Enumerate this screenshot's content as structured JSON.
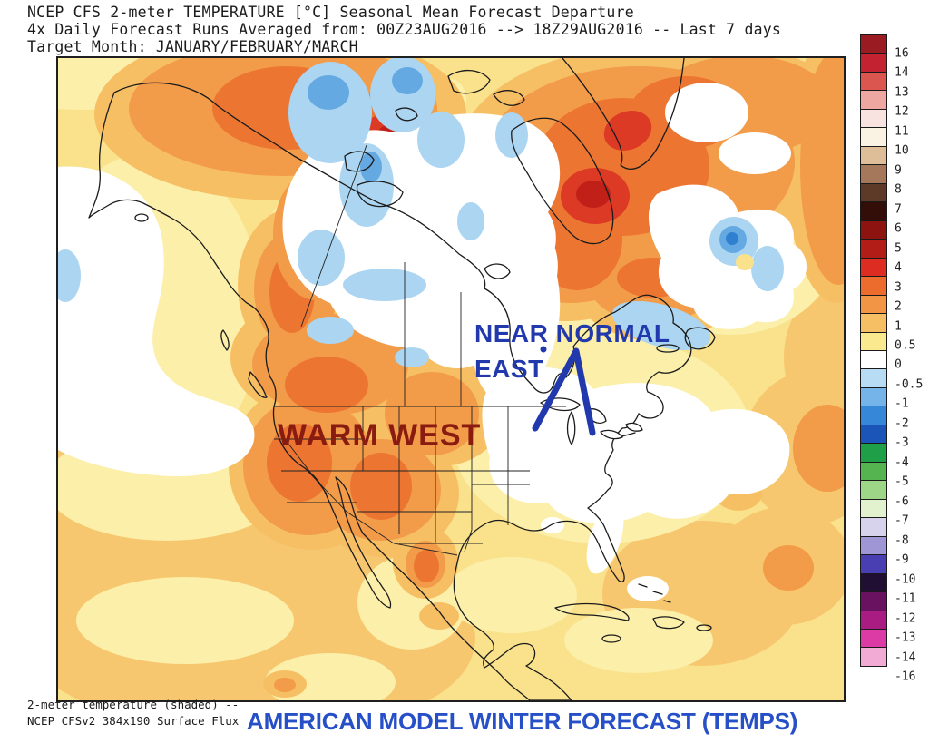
{
  "title": {
    "line1": "NCEP CFS 2-meter TEMPERATURE [°C] Seasonal Mean Forecast Departure",
    "line2": "4x Daily Forecast Runs Averaged from: 00Z23AUG2016 --> 18Z29AUG2016 -- Last 7 days",
    "line3": "Target Month: JANUARY/FEBRUARY/MARCH"
  },
  "map": {
    "annotations": {
      "warm_west": "WARM WEST",
      "warm_west_color": "#8A1B10",
      "near_normal_line1": "NEAR NORMAL",
      "near_normal_line2": "EAST",
      "near_normal_color": "#2239AE"
    }
  },
  "footer": {
    "line1": "2-meter temperature (shaded) --",
    "line2": "NCEP CFSv2 384x190 Surface Flux",
    "overlay": "AMERICAN MODEL WINTER FORECAST (TEMPS)",
    "overlay_color": "#2750C8"
  },
  "colorbar": {
    "cells": [
      "#9B1B22",
      "#C32331",
      "#DB564F",
      "#EFA8A1",
      "#F9E3E1",
      "#FAF2E2",
      "#DDBE98",
      "#A5785C",
      "#5C3A27",
      "#330D08",
      "#8C1310",
      "#B21D17",
      "#DD2C22",
      "#EC6C2D",
      "#F29544",
      "#F7BF64",
      "#FAE98E",
      "#FFFFFF",
      "#B8DCF4",
      "#74B4E8",
      "#3787D8",
      "#1C55B8",
      "#1FA048",
      "#55B450",
      "#9ED687",
      "#E3F2CE",
      "#D7D3EC",
      "#9F96D5",
      "#4A3FB2",
      "#200E33",
      "#691260",
      "#A91C82",
      "#DC3AA4",
      "#F2ABD4"
    ],
    "labels": [
      "16",
      "14",
      "13",
      "12",
      "11",
      "10",
      "9",
      "8",
      "7",
      "6",
      "5",
      "4",
      "3",
      "2",
      "1",
      "0.5",
      "0",
      "-0.5",
      "-1",
      "-2",
      "-3",
      "-4",
      "-5",
      "-6",
      "-7",
      "-8",
      "-9",
      "-10",
      "-11",
      "-12",
      "-13",
      "-14",
      "-16"
    ]
  }
}
